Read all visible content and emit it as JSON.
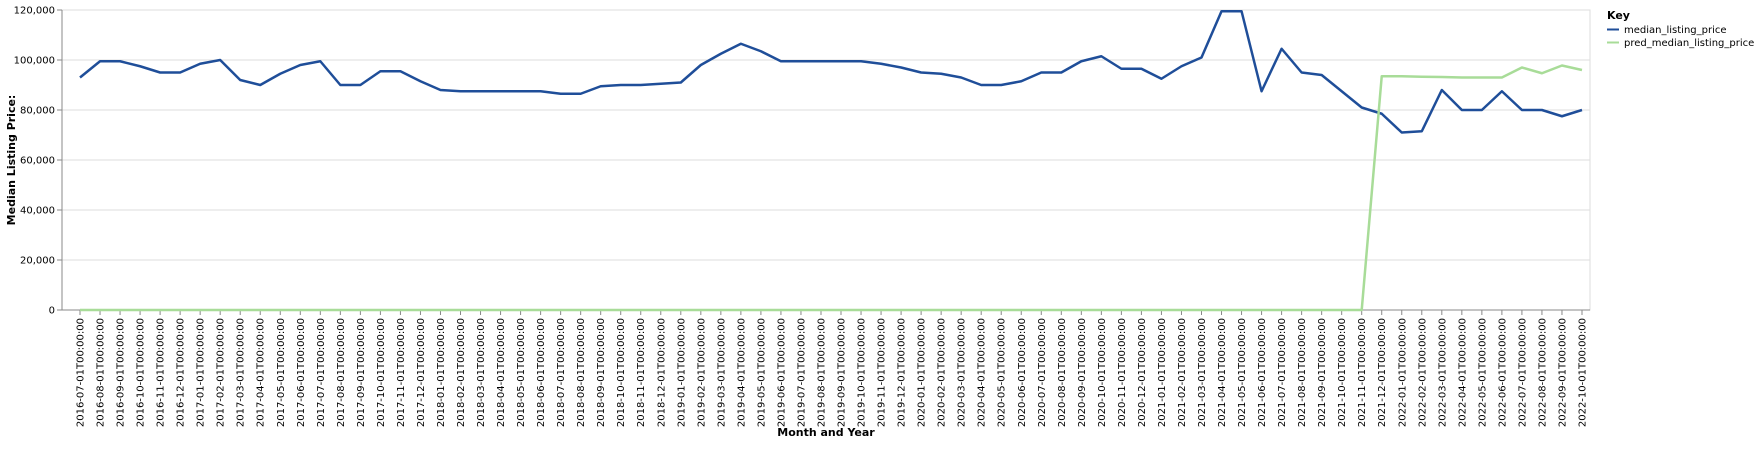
{
  "chart_data": {
    "type": "line",
    "xlabel": "Month and Year",
    "ylabel": "Median Listing Price:",
    "ylim": [
      0,
      120000
    ],
    "yticks": [
      0,
      20000,
      40000,
      60000,
      80000,
      100000,
      120000
    ],
    "grid": true,
    "legend": {
      "title": "Key",
      "placement": "top-right"
    },
    "x": [
      "2016-07-01T00:00:00",
      "2016-08-01T00:00:00",
      "2016-09-01T00:00:00",
      "2016-10-01T00:00:00",
      "2016-11-01T00:00:00",
      "2016-12-01T00:00:00",
      "2017-01-01T00:00:00",
      "2017-02-01T00:00:00",
      "2017-03-01T00:00:00",
      "2017-04-01T00:00:00",
      "2017-05-01T00:00:00",
      "2017-06-01T00:00:00",
      "2017-07-01T00:00:00",
      "2017-08-01T00:00:00",
      "2017-09-01T00:00:00",
      "2017-10-01T00:00:00",
      "2017-11-01T00:00:00",
      "2017-12-01T00:00:00",
      "2018-01-01T00:00:00",
      "2018-02-01T00:00:00",
      "2018-03-01T00:00:00",
      "2018-04-01T00:00:00",
      "2018-05-01T00:00:00",
      "2018-06-01T00:00:00",
      "2018-07-01T00:00:00",
      "2018-08-01T00:00:00",
      "2018-09-01T00:00:00",
      "2018-10-01T00:00:00",
      "2018-11-01T00:00:00",
      "2018-12-01T00:00:00",
      "2019-01-01T00:00:00",
      "2019-02-01T00:00:00",
      "2019-03-01T00:00:00",
      "2019-04-01T00:00:00",
      "2019-05-01T00:00:00",
      "2019-06-01T00:00:00",
      "2019-07-01T00:00:00",
      "2019-08-01T00:00:00",
      "2019-09-01T00:00:00",
      "2019-10-01T00:00:00",
      "2019-11-01T00:00:00",
      "2019-12-01T00:00:00",
      "2020-01-01T00:00:00",
      "2020-02-01T00:00:00",
      "2020-03-01T00:00:00",
      "2020-04-01T00:00:00",
      "2020-05-01T00:00:00",
      "2020-06-01T00:00:00",
      "2020-07-01T00:00:00",
      "2020-08-01T00:00:00",
      "2020-09-01T00:00:00",
      "2020-10-01T00:00:00",
      "2020-11-01T00:00:00",
      "2020-12-01T00:00:00",
      "2021-01-01T00:00:00",
      "2021-02-01T00:00:00",
      "2021-03-01T00:00:00",
      "2021-04-01T00:00:00",
      "2021-05-01T00:00:00",
      "2021-06-01T00:00:00",
      "2021-07-01T00:00:00",
      "2021-08-01T00:00:00",
      "2021-09-01T00:00:00",
      "2021-10-01T00:00:00",
      "2021-11-01T00:00:00",
      "2021-12-01T00:00:00",
      "2022-01-01T00:00:00",
      "2022-02-01T00:00:00",
      "2022-03-01T00:00:00",
      "2022-04-01T00:00:00",
      "2022-05-01T00:00:00",
      "2022-06-01T00:00:00",
      "2022-07-01T00:00:00",
      "2022-08-01T00:00:00",
      "2022-09-01T00:00:00",
      "2022-10-01T00:00:00"
    ],
    "series": [
      {
        "name": "median_listing_price",
        "color": "#1f4e99",
        "values": [
          93000,
          99500,
          99500,
          97500,
          95000,
          95000,
          98500,
          100000,
          92000,
          90000,
          94500,
          98000,
          99500,
          90000,
          90000,
          95500,
          95500,
          91500,
          88000,
          87500,
          87500,
          87500,
          87500,
          87500,
          86500,
          86500,
          89500,
          90000,
          90000,
          90500,
          91000,
          98000,
          102500,
          106500,
          103500,
          99500,
          99500,
          99500,
          99500,
          99500,
          98500,
          97000,
          95000,
          94500,
          93000,
          90000,
          90000,
          91500,
          95000,
          95000,
          99500,
          101500,
          96500,
          96500,
          92500,
          97500,
          101000,
          119500,
          119500,
          87500,
          104500,
          95000,
          94000,
          87500,
          81000,
          78500,
          71000,
          71500,
          88000,
          80000,
          80000,
          87500,
          80000,
          80000,
          77500,
          80000
        ]
      },
      {
        "name": "pred_median_listing_price",
        "color": "#a8dc98",
        "values": [
          0,
          0,
          0,
          0,
          0,
          0,
          0,
          0,
          0,
          0,
          0,
          0,
          0,
          0,
          0,
          0,
          0,
          0,
          0,
          0,
          0,
          0,
          0,
          0,
          0,
          0,
          0,
          0,
          0,
          0,
          0,
          0,
          0,
          0,
          0,
          0,
          0,
          0,
          0,
          0,
          0,
          0,
          0,
          0,
          0,
          0,
          0,
          0,
          0,
          0,
          0,
          0,
          0,
          0,
          0,
          0,
          0,
          0,
          0,
          0,
          0,
          0,
          0,
          0,
          0,
          93500,
          93500,
          93300,
          93200,
          93000,
          93000,
          93000,
          97000,
          94700,
          97800,
          96000
        ]
      }
    ]
  }
}
